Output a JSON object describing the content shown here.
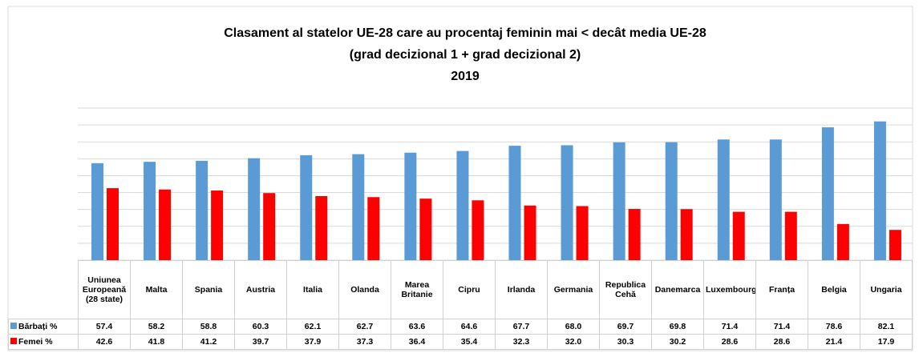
{
  "chart_data": {
    "type": "bar",
    "title": "Clasament al statelor UE-28 care au procentaj feminin mai < decât media UE-28",
    "subtitle": "(grad decizional 1 + grad decizional 2)",
    "year": "2019",
    "categories": [
      "Uniunea Europeană (28 state)",
      "Malta",
      "Spania",
      "Austria",
      "Italia",
      "Olanda",
      "Marea Britanie",
      "Cipru",
      "Irlanda",
      "Germania",
      "Republica Cehă",
      "Danemarca",
      "Luxembourg",
      "Franța",
      "Belgia",
      "Ungaria"
    ],
    "series": [
      {
        "name": "Bărbați %",
        "color": "#5b9bd5",
        "values": [
          57.4,
          58.2,
          58.8,
          60.3,
          62.1,
          62.7,
          63.6,
          64.6,
          67.7,
          68.0,
          69.7,
          69.8,
          71.4,
          71.4,
          78.6,
          82.1
        ],
        "value_labels": [
          "57.4",
          "58.2",
          "58.8",
          "60.3",
          "62.1",
          "62.7",
          "63.6",
          "64.6",
          "67.7",
          "68.0",
          "69.7",
          "69.8",
          "71.4",
          "71.4",
          "78.6",
          "82.1"
        ]
      },
      {
        "name": "Femei %",
        "color": "#ff0000",
        "values": [
          42.6,
          41.8,
          41.2,
          39.7,
          37.9,
          37.3,
          36.4,
          35.4,
          32.3,
          32.0,
          30.3,
          30.2,
          28.6,
          28.6,
          21.4,
          17.9
        ],
        "value_labels": [
          "42.6",
          "41.8",
          "41.2",
          "39.7",
          "37.9",
          "37.3",
          "36.4",
          "35.4",
          "32.3",
          "32.0",
          "30.3",
          "30.2",
          "28.6",
          "28.6",
          "21.4",
          "17.9"
        ]
      }
    ],
    "ylim": [
      0,
      90
    ],
    "yticks": [
      0,
      10,
      20,
      30,
      40,
      50,
      60,
      70,
      80,
      90
    ],
    "grid": true
  }
}
